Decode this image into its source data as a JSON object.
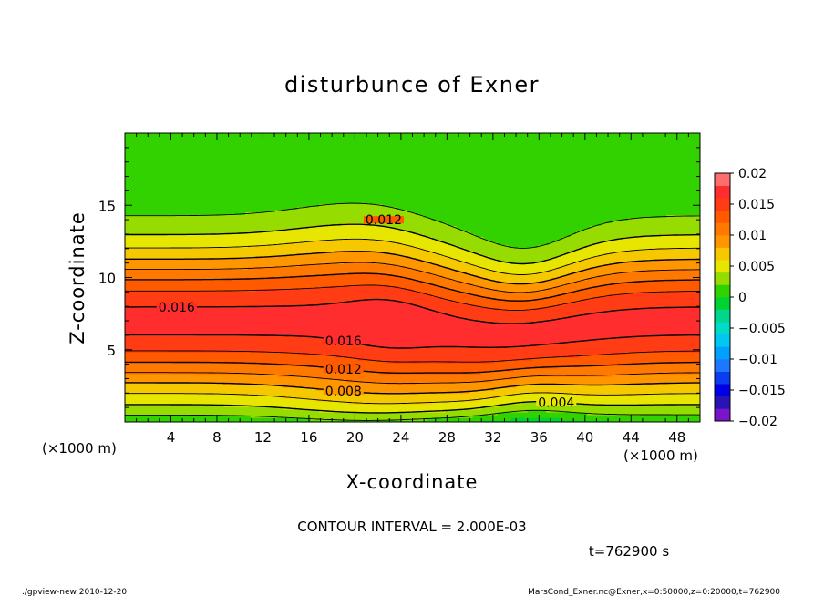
{
  "chart_data": {
    "type": "heatmap",
    "title": "disturbunce of Exner",
    "xlabel": "X-coordinate",
    "ylabel": "Z-coordinate",
    "x_unit": "(×1000 m)",
    "y_unit": "(×1000 m)",
    "xlim": [
      0,
      50
    ],
    "ylim": [
      0,
      20
    ],
    "x_ticks": [
      "4",
      "8",
      "12",
      "16",
      "20",
      "24",
      "28",
      "32",
      "36",
      "40",
      "44",
      "48"
    ],
    "y_ticks": [
      "5",
      "10",
      "15"
    ],
    "colorbar": {
      "ticks": [
        "0.02",
        "0.015",
        "0.01",
        "0.005",
        "0",
        "−0.005",
        "−0.01",
        "−0.015",
        "−0.02"
      ],
      "levels": [
        -0.02,
        -0.018,
        -0.016,
        -0.014,
        -0.012,
        -0.01,
        -0.008,
        -0.006,
        -0.004,
        -0.002,
        0,
        0.002,
        0.004,
        0.006,
        0.008,
        0.01,
        0.012,
        0.014,
        0.016,
        0.018,
        0.02
      ],
      "colors": [
        "#7a14c8",
        "#2814b4",
        "#0000e6",
        "#0a3cf0",
        "#1e78ff",
        "#00a0ff",
        "#00c8f0",
        "#00dcc8",
        "#00d78c",
        "#00d232",
        "#32d200",
        "#96dc00",
        "#e6e600",
        "#f5c800",
        "#ff9600",
        "#ff7800",
        "#ff5a00",
        "#ff3c14",
        "#ff2d2d",
        "#ff6e6e"
      ]
    },
    "contours": [
      {
        "label": "0.004",
        "level": 0.004
      },
      {
        "label": "0.008",
        "level": 0.008
      },
      {
        "label": "0.012",
        "level": 0.012
      },
      {
        "label": "0.016",
        "level": 0.016
      }
    ],
    "contour_interval": "CONTOUR INTERVAL = 2.000E-03",
    "time": "t=762900 s"
  },
  "footer": {
    "left": "./gpview-new  2010-12-20",
    "right": "MarsCond_Exner.nc@Exner,x=0:50000,z=0:20000,t=762900"
  }
}
